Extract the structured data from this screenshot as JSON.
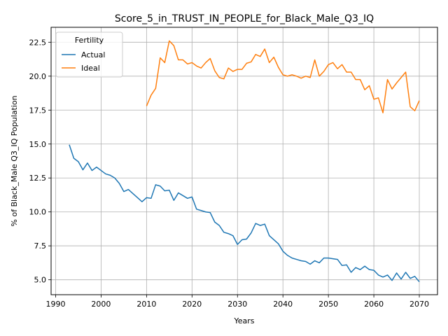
{
  "chart_data": {
    "type": "line",
    "title": "Score_5_in_TRUST_IN_PEOPLE_for_Black_Male_Q3_IQ",
    "xlabel": "Years",
    "ylabel": "% of Black_Male Q3_IQ Population",
    "xlim": [
      1989,
      2074
    ],
    "ylim": [
      3.9,
      23.6
    ],
    "xticks": [
      1990,
      2000,
      2010,
      2020,
      2030,
      2040,
      2050,
      2060,
      2070
    ],
    "yticks": [
      5.0,
      7.5,
      10.0,
      12.5,
      15.0,
      17.5,
      20.0,
      22.5
    ],
    "xtick_labels": [
      "1990",
      "2000",
      "2010",
      "2020",
      "2030",
      "2040",
      "2050",
      "2060",
      "2070"
    ],
    "ytick_labels": [
      "5.0",
      "7.5",
      "10.0",
      "12.5",
      "15.0",
      "17.5",
      "20.0",
      "22.5"
    ],
    "grid": true,
    "legend": {
      "title": "Fertility",
      "position": "top-left"
    },
    "series": [
      {
        "name": "Actual",
        "color": "#1f77b4",
        "x": [
          1993,
          1994,
          1995,
          1996,
          1997,
          1998,
          1999,
          2000,
          2001,
          2002,
          2003,
          2004,
          2005,
          2006,
          2007,
          2008,
          2009,
          2010,
          2011,
          2012,
          2013,
          2014,
          2015,
          2016,
          2017,
          2018,
          2019,
          2020,
          2021,
          2022,
          2023,
          2024,
          2025,
          2026,
          2027,
          2028,
          2029,
          2030,
          2031,
          2032,
          2033,
          2034,
          2035,
          2036,
          2037,
          2038,
          2039,
          2040,
          2041,
          2042,
          2043,
          2044,
          2045,
          2046,
          2047,
          2048,
          2049,
          2050,
          2051,
          2052,
          2053,
          2054,
          2055,
          2056,
          2057,
          2058,
          2059,
          2060,
          2061,
          2062,
          2063,
          2064,
          2065,
          2066,
          2067,
          2068,
          2069,
          2070
        ],
        "values": [
          14.95,
          13.95,
          13.7,
          13.1,
          13.6,
          13.05,
          13.3,
          13.05,
          12.8,
          12.7,
          12.5,
          12.1,
          11.5,
          11.65,
          11.35,
          11.05,
          10.75,
          11.05,
          11.0,
          12.0,
          11.9,
          11.55,
          11.6,
          10.85,
          11.4,
          11.2,
          11.0,
          11.1,
          10.2,
          10.1,
          10.0,
          9.95,
          9.25,
          9.0,
          8.5,
          8.4,
          8.25,
          7.6,
          7.95,
          8.0,
          8.45,
          9.15,
          9.0,
          9.1,
          8.25,
          7.95,
          7.65,
          7.1,
          6.8,
          6.6,
          6.5,
          6.4,
          6.35,
          6.15,
          6.4,
          6.25,
          6.6,
          6.6,
          6.55,
          6.5,
          6.05,
          6.1,
          5.55,
          5.9,
          5.75,
          6.0,
          5.75,
          5.7,
          5.35,
          5.2,
          5.35,
          4.95,
          5.5,
          5.05,
          5.55,
          5.1,
          5.25,
          4.85
        ]
      },
      {
        "name": "Ideal",
        "color": "#ff7f0e",
        "x": [
          2010,
          2011,
          2012,
          2013,
          2014,
          2015,
          2016,
          2017,
          2018,
          2019,
          2020,
          2021,
          2022,
          2023,
          2024,
          2025,
          2026,
          2027,
          2028,
          2029,
          2030,
          2031,
          2032,
          2033,
          2034,
          2035,
          2036,
          2037,
          2038,
          2039,
          2040,
          2041,
          2042,
          2043,
          2044,
          2045,
          2046,
          2047,
          2048,
          2049,
          2050,
          2051,
          2052,
          2053,
          2054,
          2055,
          2056,
          2057,
          2058,
          2059,
          2060,
          2061,
          2062,
          2063,
          2064,
          2065,
          2066,
          2067,
          2068,
          2069,
          2070
        ],
        "values": [
          17.8,
          18.6,
          19.1,
          21.35,
          21.0,
          22.6,
          22.25,
          21.2,
          21.2,
          20.9,
          21.0,
          20.75,
          20.6,
          21.0,
          21.3,
          20.4,
          19.9,
          19.8,
          20.6,
          20.35,
          20.5,
          20.5,
          20.95,
          21.05,
          21.6,
          21.45,
          22.0,
          21.0,
          21.4,
          20.65,
          20.1,
          20.0,
          20.1,
          20.0,
          19.85,
          20.0,
          19.9,
          21.2,
          20.0,
          20.35,
          20.85,
          21.0,
          20.55,
          20.85,
          20.3,
          20.3,
          19.75,
          19.75,
          19.0,
          19.3,
          18.3,
          18.4,
          17.3,
          19.75,
          19.05,
          19.5,
          19.9,
          20.3,
          17.75,
          17.45,
          18.2
        ]
      }
    ]
  }
}
